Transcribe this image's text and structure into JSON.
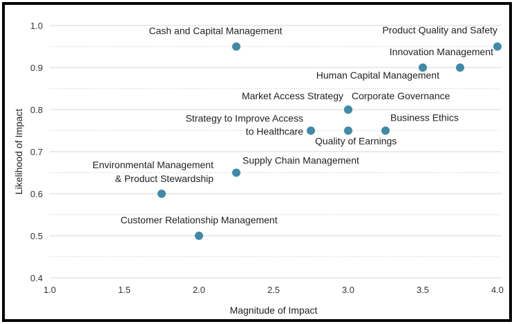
{
  "chart_data": {
    "type": "scatter",
    "title": "",
    "xlabel": "Magnitude of Impact",
    "ylabel": "Likelihood of Impact",
    "xlim": [
      1.0,
      4.0
    ],
    "ylim": [
      0.4,
      1.0
    ],
    "xticks": [
      "1.0",
      "1.5",
      "2.0",
      "2.5",
      "3.0",
      "3.5",
      "4.0"
    ],
    "yticks": [
      "0.4",
      "0.5",
      "0.6",
      "0.7",
      "0.8",
      "0.9",
      "1.0"
    ],
    "grid": "horizontal (solid at major ticks, dotted at midpoints)",
    "marker_color": "#3f8aa6",
    "points": [
      {
        "label": [
          "Cash and Capital Management"
        ],
        "x": 2.25,
        "y": 0.95
      },
      {
        "label": [
          "Product Quality and Safety"
        ],
        "x": 4.0,
        "y": 0.95
      },
      {
        "label": [
          "Innovation Management"
        ],
        "x": 3.75,
        "y": 0.9
      },
      {
        "label": [
          "Human Capital Management"
        ],
        "x": 3.5,
        "y": 0.9
      },
      {
        "label": [
          "Market Access Strategy"
        ],
        "x": 3.0,
        "y": 0.8
      },
      {
        "label": [
          "Corporate Governance"
        ],
        "x": 3.0,
        "y": 0.8
      },
      {
        "label": [
          "Strategy to Improve Access",
          "to Healthcare"
        ],
        "x": 2.75,
        "y": 0.75
      },
      {
        "label": [
          "Quality of Earnings"
        ],
        "x": 3.0,
        "y": 0.75
      },
      {
        "label": [
          "Business Ethics"
        ],
        "x": 3.25,
        "y": 0.75
      },
      {
        "label": [
          "Supply Chain Management"
        ],
        "x": 2.25,
        "y": 0.65
      },
      {
        "label": [
          "Environmental Management",
          "& Product Stewardship"
        ],
        "x": 1.75,
        "y": 0.6
      },
      {
        "label": [
          "Customer Relationship Management"
        ],
        "x": 2.0,
        "y": 0.5
      }
    ]
  }
}
